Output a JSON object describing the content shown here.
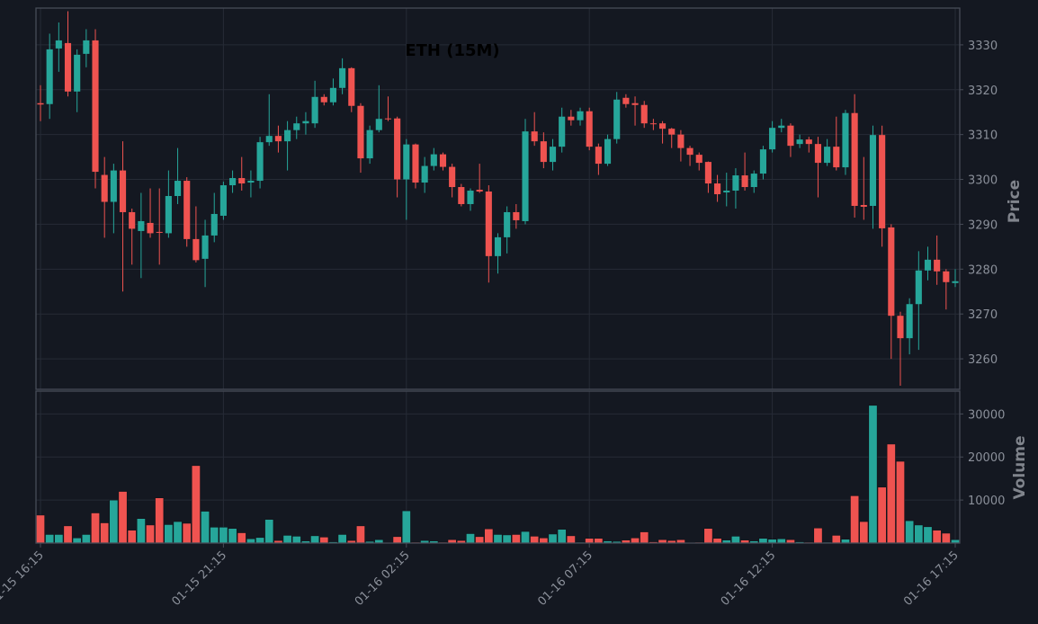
{
  "chart_data": [
    {
      "type": "candlestick",
      "title": "ETH (15M)",
      "ylabel": "Price",
      "x": [
        "01-15 16:15",
        "01-15 16:30",
        "01-15 16:45",
        "01-15 17:00",
        "01-15 17:15",
        "01-15 17:30",
        "01-15 17:45",
        "01-15 18:00",
        "01-15 18:15",
        "01-15 18:30",
        "01-15 18:45",
        "01-15 19:00",
        "01-15 19:15",
        "01-15 19:30",
        "01-15 19:45",
        "01-15 20:00",
        "01-15 20:15",
        "01-15 20:30",
        "01-15 20:45",
        "01-15 21:00",
        "01-15 21:15",
        "01-15 21:30",
        "01-15 21:45",
        "01-15 22:00",
        "01-15 22:15",
        "01-15 22:30",
        "01-15 22:45",
        "01-15 23:00",
        "01-15 23:15",
        "01-15 23:30",
        "01-15 23:45",
        "01-16 00:00",
        "01-16 00:15",
        "01-16 00:30",
        "01-16 00:45",
        "01-16 01:00",
        "01-16 01:15",
        "01-16 01:30",
        "01-16 01:45",
        "01-16 02:00",
        "01-16 02:15",
        "01-16 02:30",
        "01-16 02:45",
        "01-16 03:00",
        "01-16 03:15",
        "01-16 03:30",
        "01-16 03:45",
        "01-16 04:00",
        "01-16 04:15",
        "01-16 04:30",
        "01-16 04:45",
        "01-16 05:00",
        "01-16 05:15",
        "01-16 05:30",
        "01-16 05:45",
        "01-16 06:00",
        "01-16 06:15",
        "01-16 06:30",
        "01-16 06:45",
        "01-16 07:00",
        "01-16 07:15",
        "01-16 07:30",
        "01-16 07:45",
        "01-16 08:00",
        "01-16 08:15",
        "01-16 08:30",
        "01-16 08:45",
        "01-16 09:00",
        "01-16 09:15",
        "01-16 09:30",
        "01-16 09:45",
        "01-16 10:00",
        "01-16 10:15",
        "01-16 10:30",
        "01-16 10:45",
        "01-16 11:00",
        "01-16 11:15",
        "01-16 11:30",
        "01-16 11:45",
        "01-16 12:00",
        "01-16 12:15",
        "01-16 12:30",
        "01-16 12:45",
        "01-16 13:00",
        "01-16 13:15",
        "01-16 13:30",
        "01-16 13:45",
        "01-16 14:00",
        "01-16 14:15",
        "01-16 14:30",
        "01-16 14:45",
        "01-16 15:00",
        "01-16 15:15",
        "01-16 15:30",
        "01-16 15:45",
        "01-16 16:00",
        "01-16 16:15",
        "01-16 16:30",
        "01-16 16:45",
        "01-16 17:00",
        "01-16 17:15"
      ],
      "open": [
        3317,
        3316.8,
        3329.2,
        3330.4,
        3319.6,
        3328,
        3331,
        3301,
        3295,
        3302,
        3292.7,
        3288.5,
        3290.3,
        3288.3,
        3288,
        3296.3,
        3299.7,
        3286.7,
        3282.3,
        3287.5,
        3291.9,
        3298.7,
        3300.3,
        3299.3,
        3299.7,
        3308.3,
        3309.7,
        3308.5,
        3311,
        3312.5,
        3312.5,
        3318.4,
        3317.2,
        3320.4,
        3324.8,
        3316.4,
        3304.7,
        3311,
        3313.6,
        3313.6,
        3300,
        3307.8,
        3299.3,
        3303,
        3305.6,
        3302.8,
        3298.3,
        3294.5,
        3297.7,
        3297.3,
        3282.9,
        3287.1,
        3292.7,
        3290.7,
        3310.7,
        3308.5,
        3303.9,
        3307.3,
        3314,
        3313.2,
        3315.2,
        3307.3,
        3303.5,
        3309,
        3318.2,
        3317,
        3316.6,
        3312.5,
        3312.5,
        3311.3,
        3310,
        3307,
        3305.5,
        3303.9,
        3299.1,
        3297.1,
        3297.5,
        3300.9,
        3298.3,
        3301.3,
        3306.7,
        3311.5,
        3312,
        3307.9,
        3308.9,
        3307.9,
        3303.7,
        3307.3,
        3302.7,
        3314.8,
        3294.3,
        3294.1,
        3309.9,
        3289.3,
        3269.6,
        3264.6,
        3272.2,
        3279.7,
        3282.1,
        3279.5,
        3276.9
      ],
      "high": [
        3321,
        3332.5,
        3335,
        3337.5,
        3329,
        3333.5,
        3333.5,
        3305,
        3303.5,
        3308.5,
        3293.5,
        3297,
        3298,
        3298,
        3302,
        3307,
        3300.5,
        3294,
        3291,
        3297,
        3299.5,
        3302,
        3305,
        3302,
        3309.5,
        3319,
        3312,
        3313,
        3314,
        3315,
        3322,
        3319,
        3322.5,
        3327,
        3325,
        3317,
        3312,
        3321,
        3318.5,
        3314,
        3309,
        3308,
        3305,
        3307,
        3306,
        3303.5,
        3299,
        3298,
        3303.5,
        3298.7,
        3288,
        3294,
        3294.5,
        3313.5,
        3315,
        3310.5,
        3309,
        3316,
        3315.5,
        3316,
        3316,
        3308,
        3310,
        3319.5,
        3319,
        3318.5,
        3317.5,
        3313.5,
        3313,
        3311.5,
        3311,
        3307.5,
        3306,
        3304,
        3301,
        3301.5,
        3302.5,
        3306,
        3302,
        3307.5,
        3313,
        3313.5,
        3312.5,
        3310,
        3309.5,
        3309.5,
        3309,
        3314,
        3315.5,
        3319,
        3305,
        3312,
        3312,
        3290,
        3270.5,
        3273.5,
        3284,
        3285,
        3287.5,
        3280,
        3280
      ],
      "low": [
        3313,
        3313.5,
        3324,
        3318.5,
        3315,
        3325,
        3298,
        3287,
        3288,
        3275,
        3281,
        3278,
        3287,
        3281,
        3287,
        3294.5,
        3285,
        3281.5,
        3276,
        3286,
        3291,
        3297,
        3297.5,
        3296,
        3298,
        3307.5,
        3306,
        3302,
        3309,
        3310,
        3311.5,
        3316.5,
        3316.5,
        3319,
        3315,
        3301.5,
        3303.5,
        3310.5,
        3313,
        3296,
        3291,
        3298,
        3297,
        3302,
        3302,
        3296,
        3294,
        3293,
        3297,
        3277,
        3279,
        3283.5,
        3289,
        3290,
        3307.5,
        3302.5,
        3302,
        3306,
        3312,
        3312,
        3306.5,
        3301,
        3303,
        3308,
        3316,
        3312,
        3311.5,
        3311,
        3308,
        3307,
        3304,
        3303,
        3302,
        3297,
        3295,
        3294,
        3293.5,
        3297.5,
        3297,
        3300,
        3306,
        3310.5,
        3305,
        3307,
        3306,
        3296,
        3303,
        3302,
        3301,
        3291.5,
        3291,
        3289,
        3285,
        3260,
        3254,
        3261,
        3262,
        3277.5,
        3276.5,
        3271,
        3276
      ],
      "close": [
        3316.7,
        3329,
        3331,
        3319.6,
        3327.8,
        3331,
        3301.7,
        3295,
        3302,
        3292.7,
        3289,
        3290.7,
        3288,
        3288.2,
        3296.3,
        3299.7,
        3286.7,
        3282,
        3287.5,
        3292.3,
        3298.7,
        3300.3,
        3299.1,
        3299.7,
        3308.3,
        3309.7,
        3308.5,
        3311,
        3312.5,
        3313,
        3318.4,
        3317.2,
        3320.4,
        3324.8,
        3316.4,
        3304.7,
        3311,
        3313.5,
        3313.4,
        3300,
        3307.8,
        3299.3,
        3303,
        3305.6,
        3302.8,
        3298.3,
        3294.5,
        3297.5,
        3297.3,
        3282.9,
        3287.1,
        3292.7,
        3290.9,
        3310.7,
        3308.5,
        3303.9,
        3307.3,
        3314,
        3313.2,
        3315.2,
        3307.3,
        3303.5,
        3309,
        3317.8,
        3316.8,
        3316.6,
        3312.5,
        3312.3,
        3311.3,
        3310,
        3307,
        3305.5,
        3303.7,
        3299.1,
        3296.7,
        3297.5,
        3300.9,
        3298.3,
        3301.3,
        3306.7,
        3311.5,
        3312,
        3307.5,
        3308.9,
        3307.9,
        3303.7,
        3307.3,
        3302.7,
        3314.8,
        3294.1,
        3293.9,
        3309.9,
        3289.1,
        3269.6,
        3264.6,
        3272.2,
        3279.7,
        3282.1,
        3279.5,
        3277.1,
        3277.3
      ],
      "up_color": "#26a69a",
      "down_color": "#ef5350",
      "ylim": [
        3253.2,
        3338.2
      ],
      "yticks": [
        3260,
        3270,
        3280,
        3290,
        3300,
        3310,
        3320,
        3330
      ],
      "grid": true
    },
    {
      "type": "bar",
      "ylabel": "Volume",
      "values": [
        6500,
        2000,
        2000,
        4000,
        1200,
        2000,
        7000,
        4700,
        10000,
        12000,
        3000,
        5700,
        4200,
        10500,
        4300,
        5000,
        4600,
        18000,
        7400,
        3700,
        3700,
        3400,
        2400,
        1000,
        1300,
        5500,
        600,
        1800,
        1600,
        500,
        1700,
        1400,
        300,
        2000,
        600,
        4000,
        400,
        800,
        100,
        1500,
        7500,
        200,
        600,
        500,
        200,
        800,
        600,
        2200,
        1500,
        3300,
        2000,
        1900,
        2000,
        2700,
        1600,
        1200,
        2100,
        3200,
        1700,
        200,
        1100,
        1100,
        500,
        400,
        700,
        1200,
        2600,
        300,
        800,
        600,
        800,
        100,
        200,
        3400,
        1100,
        700,
        1600,
        700,
        500,
        1100,
        900,
        1000,
        800,
        300,
        200,
        3500,
        200,
        1800,
        900,
        11000,
        5000,
        32000,
        13000,
        23000,
        19000,
        5200,
        4200,
        3800,
        3000,
        2300,
        800
      ],
      "ylim": [
        0,
        35300
      ],
      "yticks": [
        10000,
        20000,
        30000
      ],
      "xticks": [
        "01-15 16:15",
        "01-15 21:15",
        "01-16 02:15",
        "01-16 07:15",
        "01-16 12:15",
        "01-16 17:15"
      ],
      "grid": true
    }
  ]
}
